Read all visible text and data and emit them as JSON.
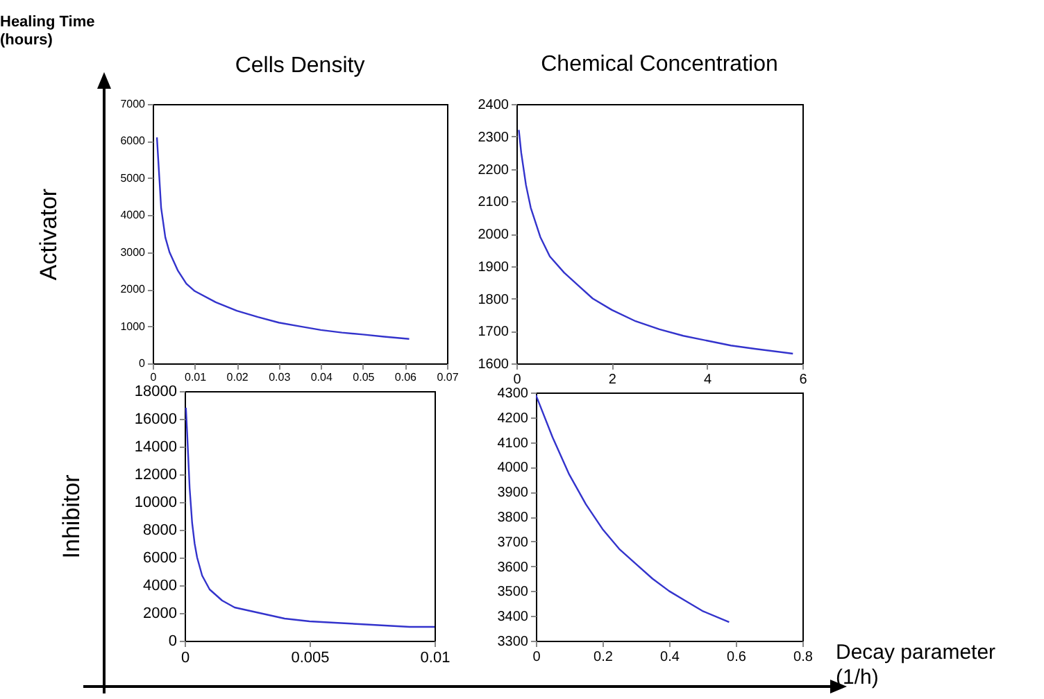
{
  "chart_data": [
    {
      "type": "line",
      "title": "Cells Density",
      "ylabel": "Activator",
      "annotations": [
        "Healing Time (hours)"
      ],
      "xlim": [
        0,
        0.07
      ],
      "xticks": [
        0,
        0.01,
        0.02,
        0.03,
        0.04,
        0.05,
        0.06,
        0.07
      ],
      "ylim": [
        0,
        7000
      ],
      "yticks": [
        0,
        1000,
        2000,
        3000,
        4000,
        5000,
        6000,
        7000
      ],
      "x": [
        0.001,
        0.002,
        0.003,
        0.004,
        0.006,
        0.008,
        0.01,
        0.015,
        0.02,
        0.025,
        0.03,
        0.035,
        0.04,
        0.045,
        0.05,
        0.055,
        0.061
      ],
      "series": [
        {
          "color": "#3333cc",
          "values": [
            6100,
            4200,
            3400,
            3000,
            2500,
            2150,
            1950,
            1650,
            1420,
            1250,
            1100,
            1000,
            900,
            830,
            780,
            720,
            660
          ]
        }
      ]
    },
    {
      "type": "line",
      "title": "Chemical Concentration",
      "xlim": [
        0,
        6
      ],
      "xticks": [
        0,
        2,
        4,
        6
      ],
      "ylim": [
        1600,
        2400
      ],
      "yticks": [
        1600,
        1700,
        1800,
        1900,
        2000,
        2100,
        2200,
        2300,
        2400
      ],
      "x": [
        0.05,
        0.1,
        0.2,
        0.3,
        0.5,
        0.7,
        1.0,
        1.3,
        1.6,
        2,
        2.5,
        3,
        3.5,
        4,
        4.5,
        5,
        5.8
      ],
      "series": [
        {
          "color": "#3333cc",
          "values": [
            2320,
            2250,
            2150,
            2080,
            1990,
            1930,
            1880,
            1840,
            1800,
            1765,
            1730,
            1705,
            1685,
            1670,
            1655,
            1645,
            1630
          ]
        }
      ]
    },
    {
      "type": "line",
      "ylabel": "Inhibitor",
      "xlim": [
        0,
        0.01
      ],
      "xticks": [
        0,
        0.005,
        0.01
      ],
      "ylim": [
        0,
        18000
      ],
      "yticks": [
        0,
        2000,
        4000,
        6000,
        8000,
        10000,
        12000,
        14000,
        16000,
        18000
      ],
      "x": [
        5e-05,
        0.0001,
        0.0002,
        0.0003,
        0.0004,
        0.0005,
        0.0007,
        0.001,
        0.0015,
        0.002,
        0.003,
        0.004,
        0.005,
        0.006,
        0.007,
        0.008,
        0.009,
        0.01
      ],
      "series": [
        {
          "color": "#3333cc",
          "values": [
            16800,
            15000,
            11000,
            8500,
            7000,
            6000,
            4700,
            3700,
            2900,
            2400,
            2000,
            1600,
            1400,
            1300,
            1200,
            1100,
            1000,
            1000
          ]
        }
      ]
    },
    {
      "type": "line",
      "xlabel": "Decay parameter (1/h)",
      "xlim": [
        0,
        0.8
      ],
      "xticks": [
        0,
        0.2,
        0.4,
        0.6,
        0.8
      ],
      "ylim": [
        3300,
        4300
      ],
      "yticks": [
        3300,
        3400,
        3500,
        3600,
        3700,
        3800,
        3900,
        4000,
        4100,
        4200,
        4300
      ],
      "x": [
        0,
        0.05,
        0.1,
        0.15,
        0.2,
        0.25,
        0.3,
        0.35,
        0.4,
        0.45,
        0.5,
        0.58
      ],
      "series": [
        {
          "color": "#3333cc",
          "values": [
            4290,
            4120,
            3970,
            3850,
            3750,
            3670,
            3610,
            3550,
            3500,
            3460,
            3420,
            3375
          ]
        }
      ]
    }
  ]
}
